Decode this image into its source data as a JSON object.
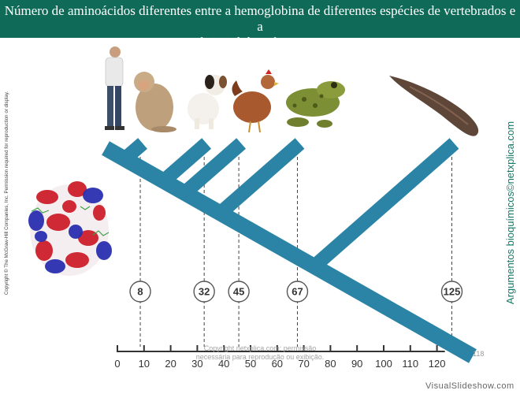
{
  "title": {
    "line1": "Número de aminoácidos diferentes entre a hemoglobina de diferentes espécies de vertebrados e a",
    "line2": "hemoglobina humana."
  },
  "side_copyright": "Copyright © The McGraw-Hill Companies, Inc. Permission required for reproduction or display.",
  "side_brand": "Argumentos bioquímicos©netxplica.com",
  "bottom_note": {
    "line1": "Copyright netxplica.com: permissão",
    "line2": "necessária para reprodução ou exibição."
  },
  "page_number": "118",
  "watermark": "VisualSlideshow.com",
  "colors": {
    "title_bg": "#0f6a58",
    "tree": "#2b84a6",
    "brand": "#127a68"
  },
  "axis": {
    "min": 0,
    "max": 120,
    "ticks": [
      0,
      10,
      20,
      30,
      40,
      50,
      60,
      70,
      80,
      90,
      100,
      110,
      120
    ]
  },
  "species": [
    {
      "name": "human",
      "value": 0
    },
    {
      "name": "monkey",
      "value": 8
    },
    {
      "name": "dog",
      "value": 32
    },
    {
      "name": "chicken",
      "value": 45
    },
    {
      "name": "frog",
      "value": 67
    },
    {
      "name": "lamprey",
      "value": 125
    }
  ],
  "nodes": [
    {
      "label": "8",
      "value": 8
    },
    {
      "label": "32",
      "value": 32
    },
    {
      "label": "45",
      "value": 45
    },
    {
      "label": "67",
      "value": 67
    },
    {
      "label": "125",
      "value": 125
    }
  ]
}
